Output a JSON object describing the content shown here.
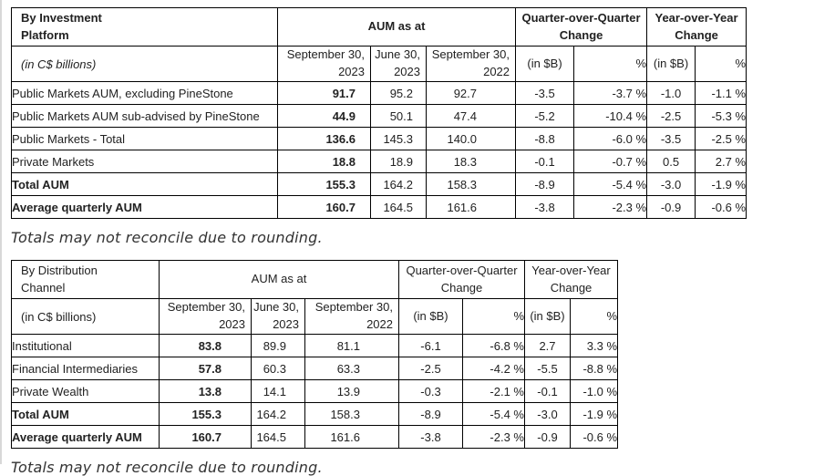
{
  "notes": [
    "Totals may not reconcile due to rounding.",
    "Totals may not reconcile due to rounding."
  ],
  "colors": {
    "border": "#000000",
    "text": "#222222",
    "page_edge": "#d8d8d8",
    "background": "#ffffff"
  },
  "tables": [
    {
      "title": "By Investment\nPlatform",
      "units_label": "(in C$ billions)",
      "group_headers": [
        "AUM as at",
        "Quarter-over-Quarter\nChange",
        "Year-over-Year\nChange"
      ],
      "columns": [
        "September 30,\n2023",
        "June 30,\n2023",
        "September 30,\n2022",
        "(in $B)",
        "%",
        "(in $B)",
        "%"
      ],
      "rows": [
        {
          "label": "Public Markets AUM, excluding PineStone",
          "bold": false,
          "values": [
            "91.7",
            "95.2",
            "92.7",
            "-3.5",
            "-3.7 %",
            "-1.0",
            "-1.1 %"
          ]
        },
        {
          "label": "Public Markets AUM sub-advised by PineStone",
          "bold": false,
          "values": [
            "44.9",
            "50.1",
            "47.4",
            "-5.2",
            "-10.4 %",
            "-2.5",
            "-5.3 %"
          ]
        },
        {
          "label": "Public Markets - Total",
          "bold": false,
          "values": [
            "136.6",
            "145.3",
            "140.0",
            "-8.8",
            "-6.0 %",
            "-3.5",
            "-2.5 %"
          ]
        },
        {
          "label": "Private Markets",
          "bold": false,
          "values": [
            "18.8",
            "18.9",
            "18.3",
            "-0.1",
            "-0.7 %",
            "0.5",
            "2.7 %"
          ]
        },
        {
          "label": "Total AUM",
          "bold": true,
          "values": [
            "155.3",
            "164.2",
            "158.3",
            "-8.9",
            "-5.4 %",
            "-3.0",
            "-1.9 %"
          ]
        },
        {
          "label": "Average quarterly AUM",
          "bold": true,
          "values": [
            "160.7",
            "164.5",
            "161.6",
            "-3.8",
            "-2.3 %",
            "-0.9",
            "-0.6 %"
          ]
        }
      ]
    },
    {
      "title": "By Distribution\nChannel",
      "units_label": "(in C$ billions)",
      "group_headers": [
        "AUM as at",
        "Quarter-over-Quarter\nChange",
        "Year-over-Year\nChange"
      ],
      "columns": [
        "September 30,\n2023",
        "June 30,\n2023",
        "September 30,\n2022",
        "(in $B)",
        "%",
        "(in $B)",
        "%"
      ],
      "rows": [
        {
          "label": "Institutional",
          "bold": false,
          "values": [
            "83.8",
            "89.9",
            "81.1",
            "-6.1",
            "-6.8 %",
            "2.7",
            "3.3 %"
          ]
        },
        {
          "label": "Financial Intermediaries",
          "bold": false,
          "values": [
            "57.8",
            "60.3",
            "63.3",
            "-2.5",
            "-4.2 %",
            "-5.5",
            "-8.8 %"
          ]
        },
        {
          "label": "Private Wealth",
          "bold": false,
          "values": [
            "13.8",
            "14.1",
            "13.9",
            "-0.3",
            "-2.1 %",
            "-0.1",
            "-1.0 %"
          ]
        },
        {
          "label": "Total AUM",
          "bold": true,
          "values": [
            "155.3",
            "164.2",
            "158.3",
            "-8.9",
            "-5.4 %",
            "-3.0",
            "-1.9 %"
          ]
        },
        {
          "label": "Average quarterly AUM",
          "bold": true,
          "values": [
            "160.7",
            "164.5",
            "161.6",
            "-3.8",
            "-2.3 %",
            "-0.9",
            "-0.6 %"
          ]
        }
      ]
    }
  ]
}
